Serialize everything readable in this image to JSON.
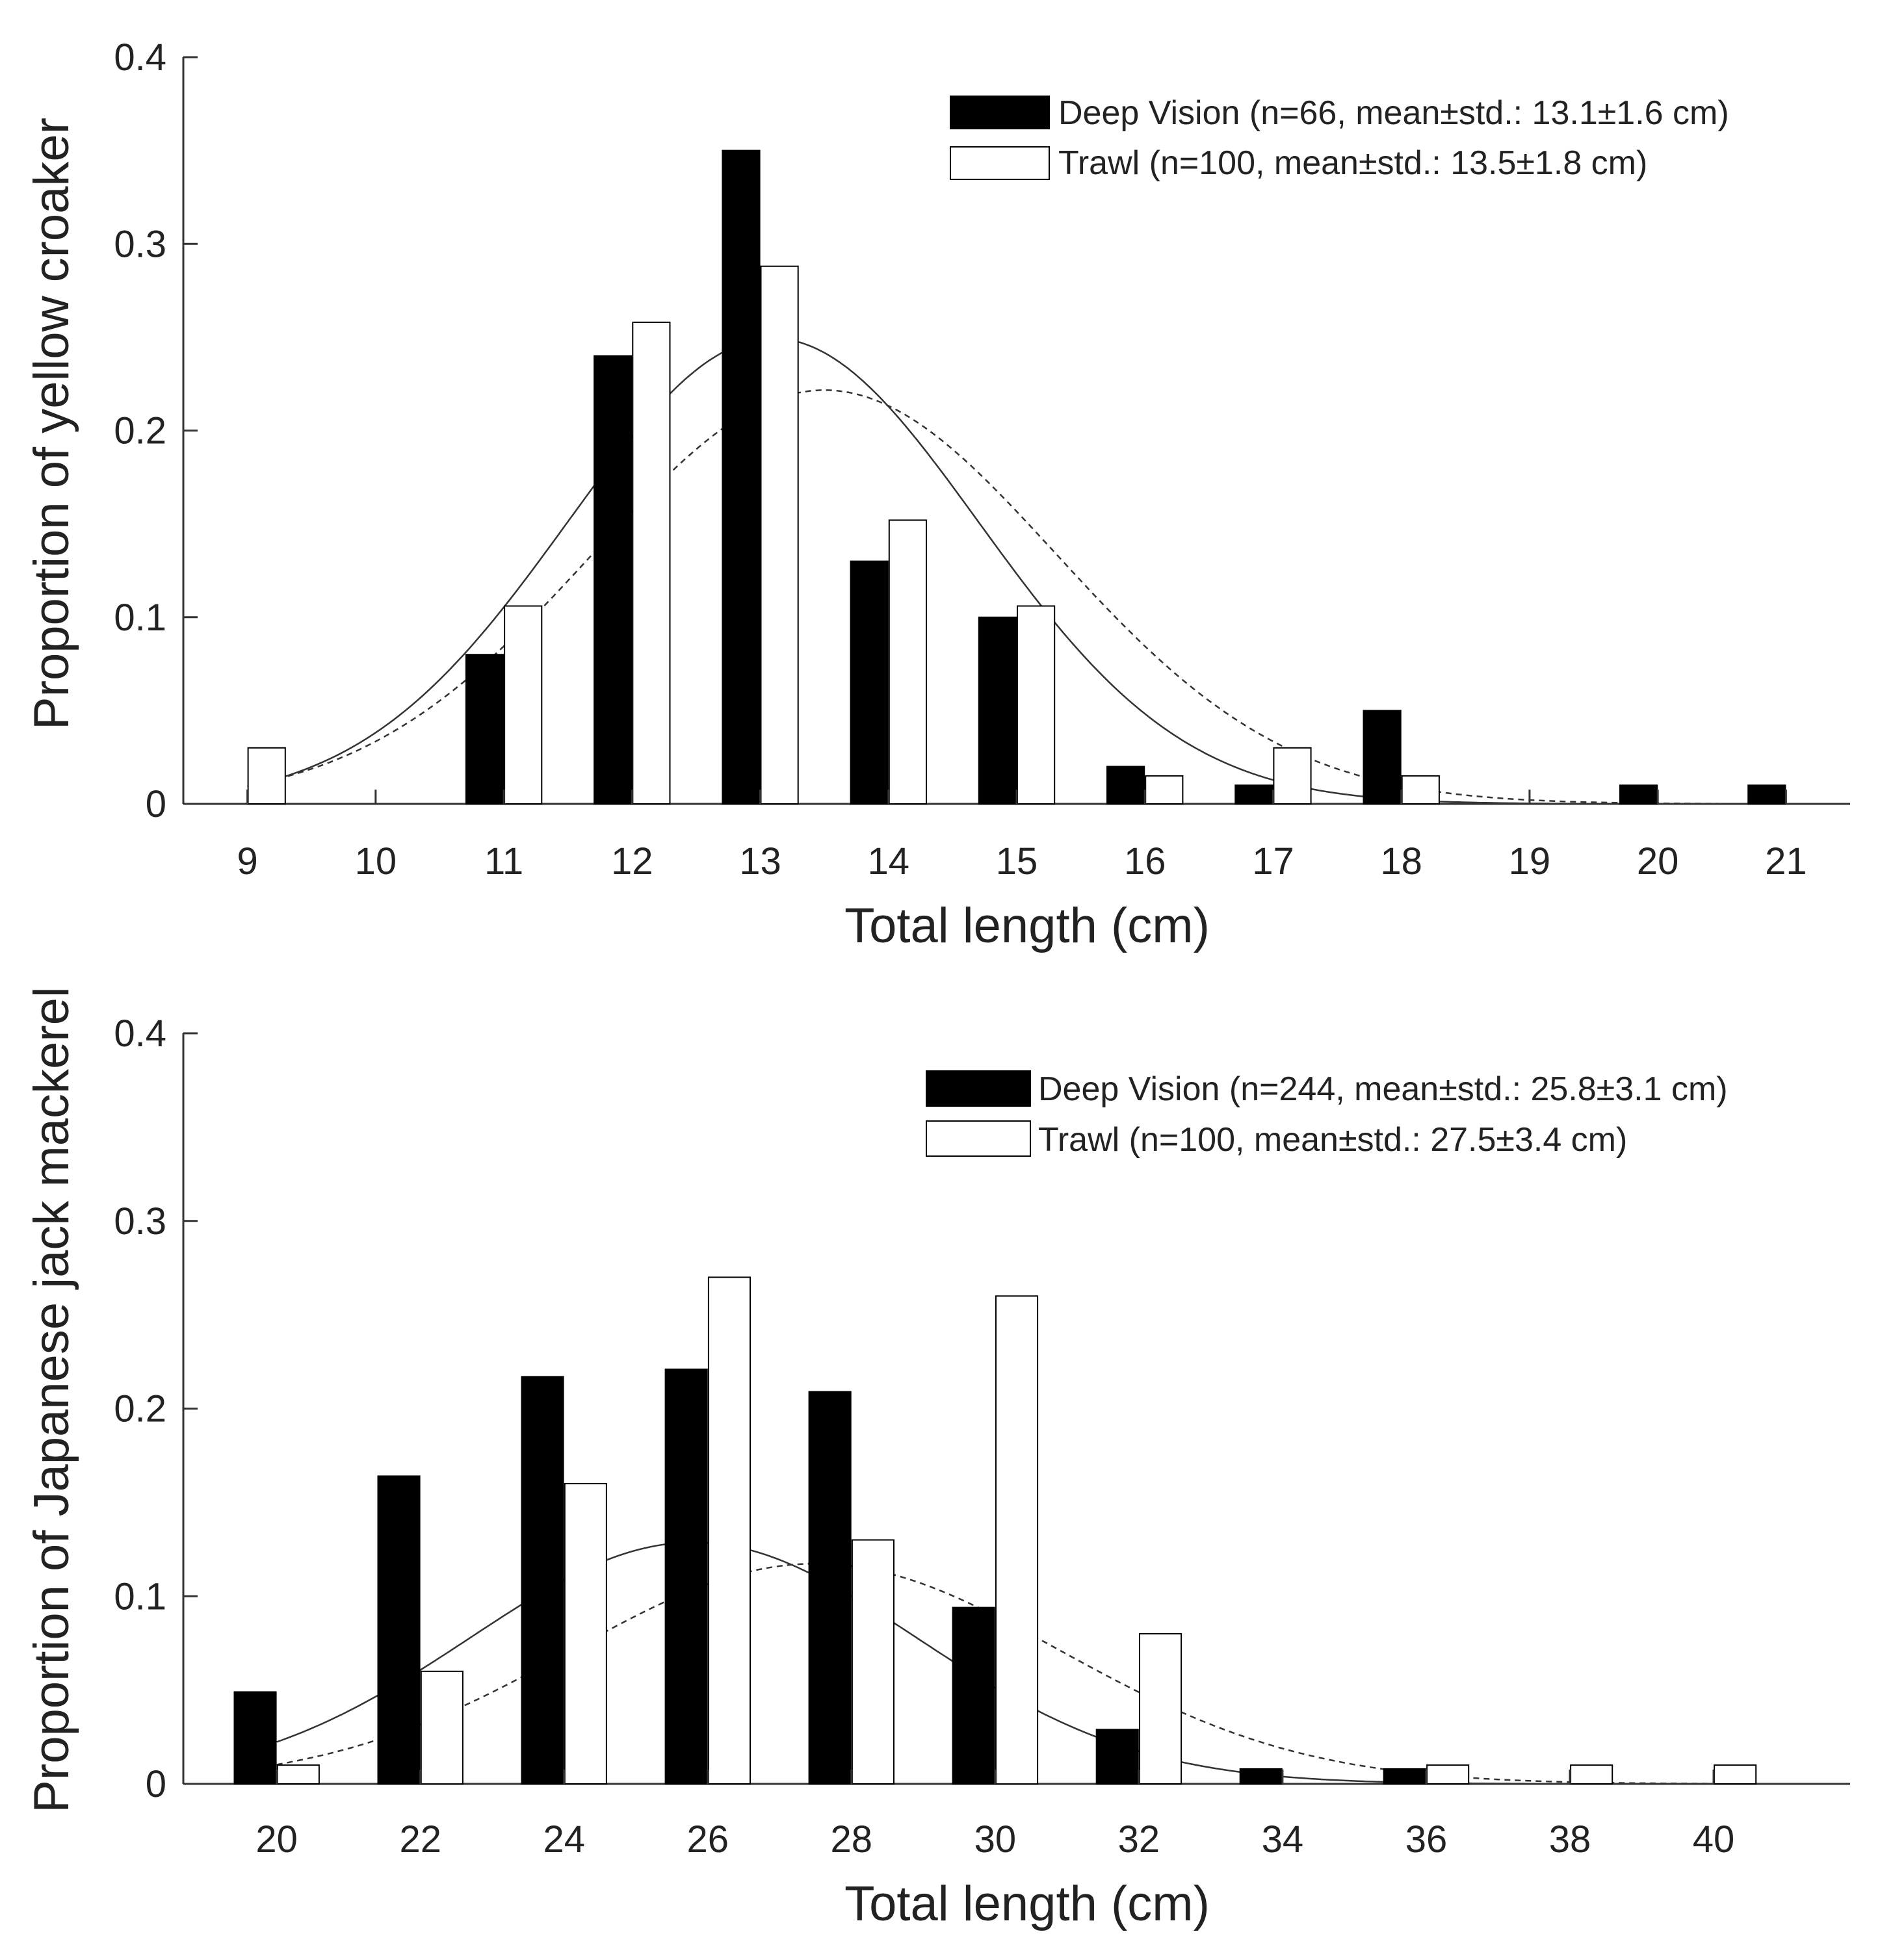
{
  "chart_data": [
    {
      "type": "bar",
      "title": "",
      "xlabel": "Total length (cm)",
      "ylabel": "Proportion of yellow croaker",
      "xlim": [
        8.5,
        21.5
      ],
      "ylim": [
        0,
        0.4
      ],
      "x_ticks": [
        9,
        10,
        11,
        12,
        13,
        14,
        15,
        16,
        17,
        18,
        19,
        20,
        21
      ],
      "x_tick_labels": [
        "9",
        "10",
        "11",
        "12",
        "13",
        "14",
        "15",
        "16",
        "17",
        "18",
        "19",
        "20",
        "21"
      ],
      "y_ticks": [
        0,
        0.1,
        0.2,
        0.3,
        0.4
      ],
      "y_tick_labels": [
        "0",
        "0.1",
        "0.2",
        "0.3",
        "0.4"
      ],
      "bar_width": 0.29,
      "legend_position": "top-right",
      "series": [
        {
          "name": "Deep Vision (n=66, mean±std.: 13.1±1.6 cm)",
          "fill": "#000000",
          "offset": -0.15,
          "x": [
            11,
            12,
            13,
            14,
            15,
            16,
            17,
            18,
            20,
            21
          ],
          "values": [
            0.08,
            0.24,
            0.35,
            0.13,
            0.1,
            0.02,
            0.01,
            0.05,
            0.01,
            0.01
          ],
          "fit": {
            "mean": 13.1,
            "std": 1.6,
            "style": "solid"
          }
        },
        {
          "name": "Trawl (n=100, mean±std.: 13.5±1.8 cm)",
          "fill": "#ffffff",
          "offset": 0.15,
          "x": [
            9,
            11,
            12,
            13,
            14,
            15,
            16,
            17,
            18
          ],
          "values": [
            0.03,
            0.106,
            0.258,
            0.288,
            0.152,
            0.106,
            0.015,
            0.03,
            0.015
          ],
          "fit": {
            "mean": 13.5,
            "std": 1.8,
            "style": "dashed"
          }
        }
      ]
    },
    {
      "type": "bar",
      "title": "",
      "xlabel": "Total length (cm)",
      "ylabel": "Proportion of Japanese jack mackerel",
      "xlim": [
        18.7,
        41.9
      ],
      "ylim": [
        0,
        0.4
      ],
      "x_ticks": [
        20,
        22,
        24,
        26,
        28,
        30,
        32,
        34,
        36,
        38,
        40
      ],
      "x_tick_labels": [
        "20",
        "22",
        "24",
        "26",
        "28",
        "30",
        "32",
        "34",
        "36",
        "38",
        "40"
      ],
      "y_ticks": [
        0,
        0.1,
        0.2,
        0.3,
        0.4
      ],
      "y_tick_labels": [
        "0",
        "0.1",
        "0.2",
        "0.3",
        "0.4"
      ],
      "bar_width": 0.58,
      "legend_position": "top-right",
      "series": [
        {
          "name": "Deep Vision (n=244, mean±std.: 25.8±3.1 cm)",
          "fill": "#000000",
          "offset": -0.3,
          "x": [
            20,
            22,
            24,
            26,
            28,
            30,
            32,
            34,
            36
          ],
          "values": [
            0.049,
            0.164,
            0.217,
            0.221,
            0.209,
            0.094,
            0.029,
            0.008,
            0.008
          ],
          "fit": {
            "mean": 25.8,
            "std": 3.1,
            "style": "solid"
          }
        },
        {
          "name": "Trawl (n=100, mean±std.: 27.5±3.4 cm)",
          "fill": "#ffffff",
          "offset": 0.3,
          "x": [
            20,
            22,
            24,
            26,
            28,
            30,
            32,
            36,
            38,
            40
          ],
          "values": [
            0.01,
            0.06,
            0.16,
            0.27,
            0.13,
            0.26,
            0.08,
            0.01,
            0.01,
            0.01
          ],
          "fit": {
            "mean": 27.5,
            "std": 3.4,
            "style": "dashed"
          }
        }
      ]
    }
  ]
}
